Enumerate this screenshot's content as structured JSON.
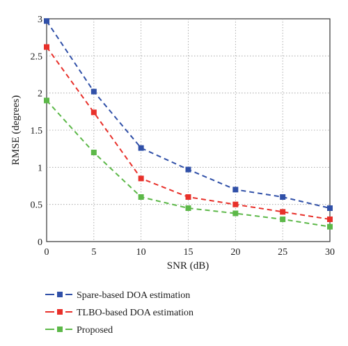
{
  "chart_data": {
    "type": "line",
    "xlabel": "SNR (dB)",
    "ylabel": "RMSE (degrees)",
    "xlim": [
      0,
      30
    ],
    "ylim": [
      0,
      3
    ],
    "xticks": [
      0,
      5,
      10,
      15,
      20,
      25,
      30
    ],
    "yticks": [
      0,
      0.5,
      1,
      1.5,
      2,
      2.5,
      3
    ],
    "xtick_labels": [
      "0",
      "5",
      "10",
      "15",
      "20",
      "25",
      "30"
    ],
    "ytick_labels": [
      "0",
      "0.5",
      "1",
      "1.5",
      "2",
      "2.5",
      "3"
    ],
    "grid": true,
    "legend_position": "bottom",
    "x": [
      0,
      5,
      10,
      15,
      20,
      25,
      30
    ],
    "series": [
      {
        "name": "Spare-based DOA estimation",
        "color": "#3050a8",
        "values": [
          2.97,
          2.02,
          1.26,
          0.97,
          0.7,
          0.6,
          0.45
        ]
      },
      {
        "name": "TLBO-based DOA estimation",
        "color": "#e8302a",
        "values": [
          2.62,
          1.74,
          0.85,
          0.6,
          0.5,
          0.4,
          0.3
        ]
      },
      {
        "name": "Proposed",
        "color": "#5cb848",
        "values": [
          1.9,
          1.2,
          0.6,
          0.45,
          0.38,
          0.3,
          0.2
        ]
      }
    ]
  }
}
